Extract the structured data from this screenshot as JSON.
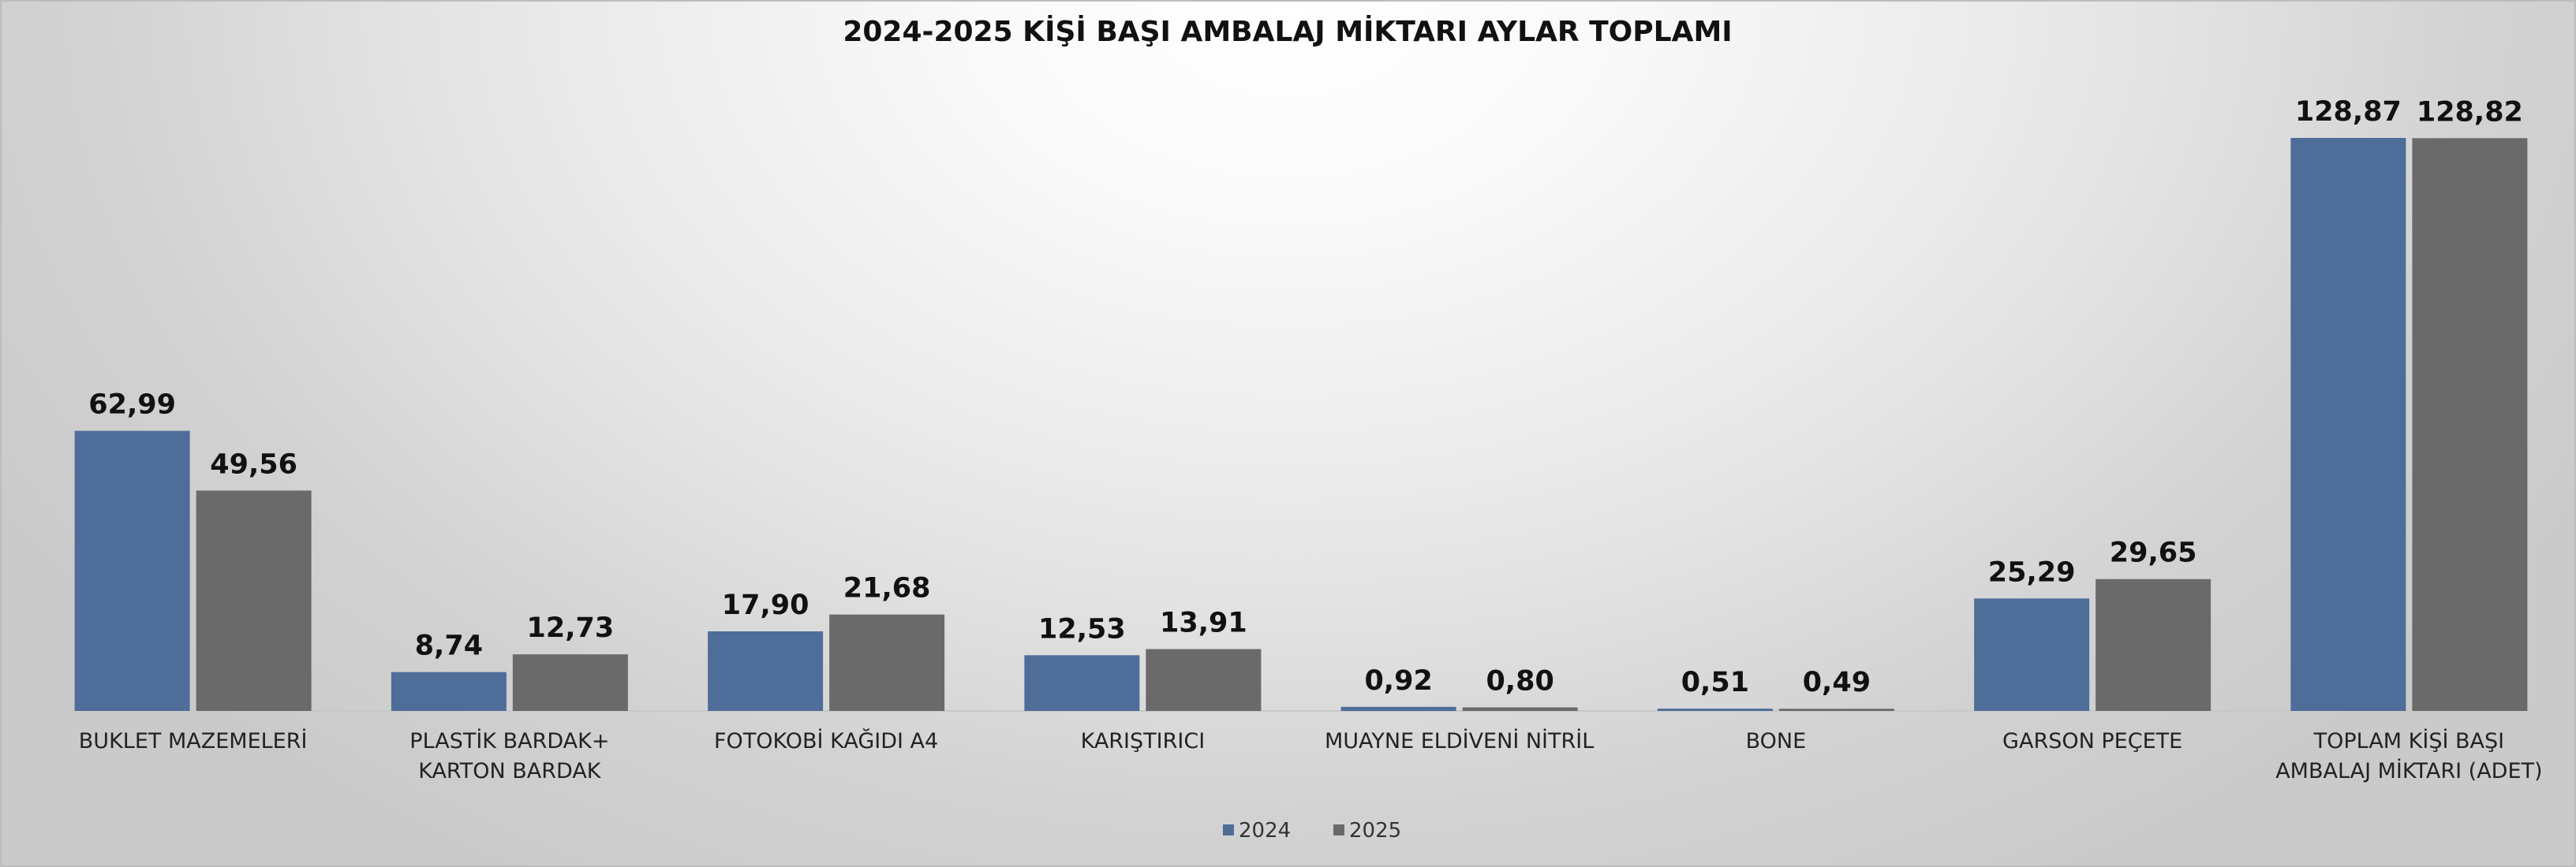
{
  "chart_data": {
    "type": "bar",
    "title": "2024-2025 KİŞİ BAŞI AMBALAJ MİKTARI AYLAR TOPLAMI",
    "categories": [
      "BUKLET MAZEMELERİ",
      "PLASTİK BARDAK+\nKARTON BARDAK",
      "FOTOKOBİ KAĞIDI A4",
      "KARIŞTIRICI",
      "MUAYNE ELDİVENİ NİTRİL",
      "BONE",
      "GARSON PEÇETE",
      "TOPLAM KİŞİ BAŞI\nAMBALAJ MİKTARI (ADET)"
    ],
    "series": [
      {
        "name": "2024",
        "color": "#4e6d99",
        "values": [
          62.99,
          8.74,
          17.9,
          12.53,
          0.92,
          0.51,
          25.29,
          128.87
        ],
        "value_labels": [
          "62,99",
          "8,74",
          "17,90",
          "12,53",
          "0,92",
          "0,51",
          "25,29",
          "128,87"
        ]
      },
      {
        "name": "2025",
        "color": "#6a6a6a",
        "values": [
          49.56,
          12.73,
          21.68,
          13.91,
          0.8,
          0.49,
          29.65,
          128.82
        ],
        "value_labels": [
          "49,56",
          "12,73",
          "21,68",
          "13,91",
          "0,80",
          "0,49",
          "29,65",
          "128,82"
        ]
      }
    ],
    "legend": "bottom"
  }
}
